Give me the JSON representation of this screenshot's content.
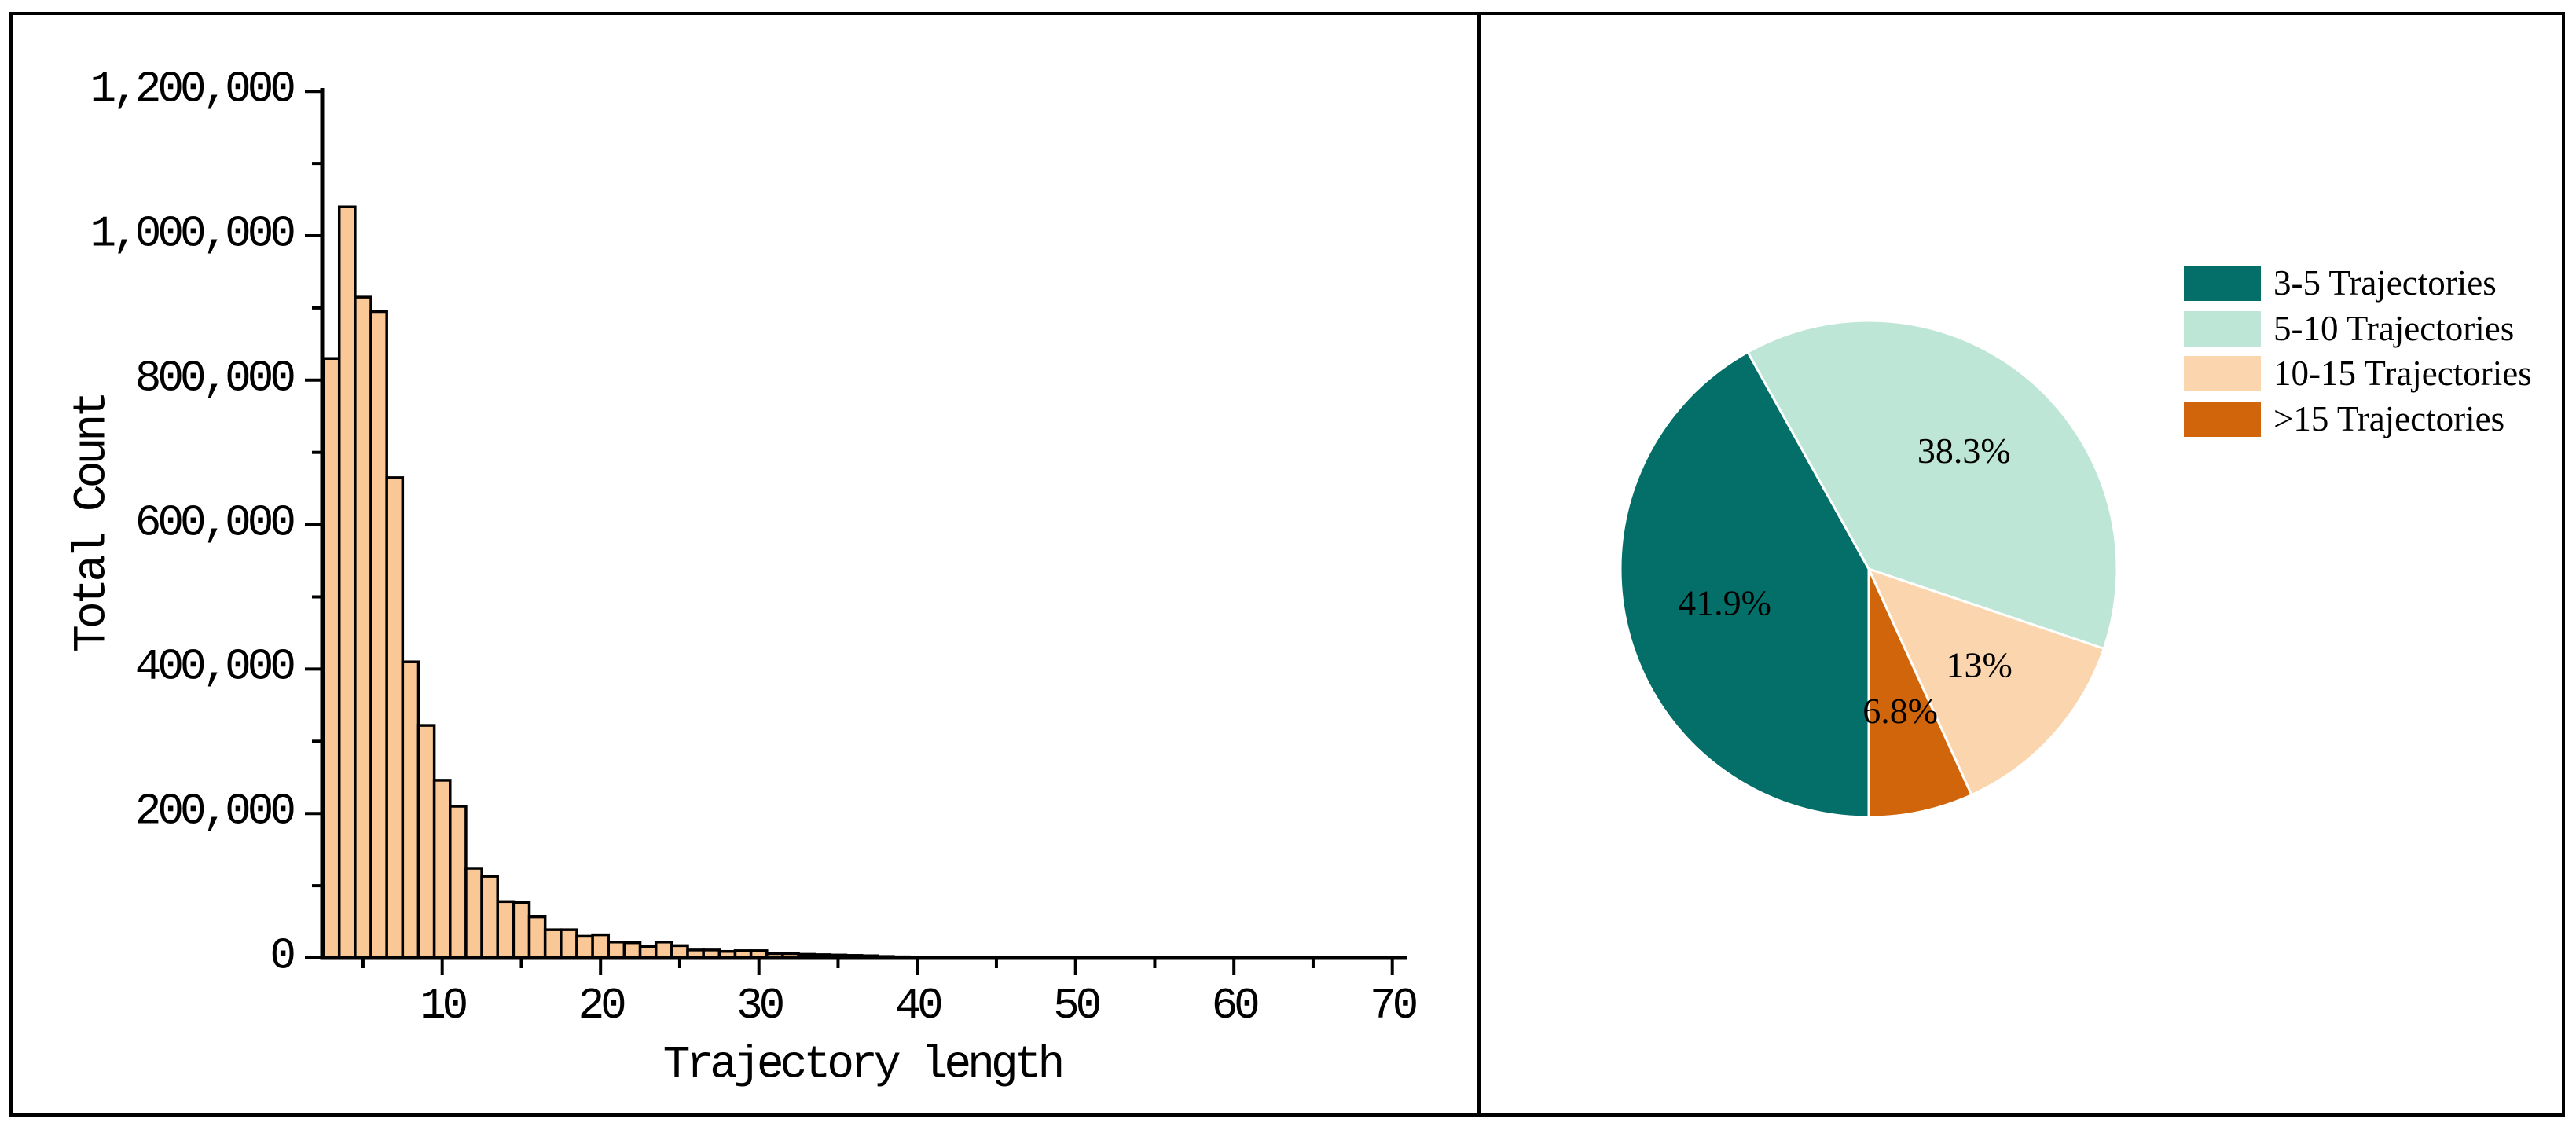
{
  "figure": {
    "background": "#ffffff",
    "border_color": "#000000"
  },
  "chart_data": [
    {
      "type": "bar",
      "title": "",
      "xlabel": "Trajectory length",
      "ylabel": "Total Count",
      "bar_color": "#FAC896",
      "bar_edge_color": "#000000",
      "xlim": [
        2,
        71
      ],
      "ylim": [
        0,
        1200000
      ],
      "grid": false,
      "x": [
        3,
        4,
        5,
        6,
        7,
        8,
        9,
        10,
        11,
        12,
        13,
        14,
        15,
        16,
        17,
        18,
        19,
        20,
        21,
        22,
        23,
        24,
        25,
        26,
        27,
        28,
        29,
        30,
        31,
        32,
        33,
        34,
        35,
        36,
        37,
        38,
        39,
        40
      ],
      "values": [
        830000,
        1040000,
        915000,
        895000,
        665000,
        410000,
        322000,
        246000,
        210000,
        124000,
        113000,
        78000,
        77000,
        57000,
        39000,
        39000,
        30000,
        32000,
        22000,
        21000,
        16000,
        22000,
        17000,
        11000,
        11000,
        9000,
        10000,
        10000,
        6000,
        6000,
        5000,
        4500,
        4000,
        3500,
        3000,
        2000,
        1500,
        1200
      ],
      "x_ticks_major": [
        10,
        20,
        30,
        40,
        50,
        60,
        70
      ],
      "x_tick_labels": [
        "10",
        "20",
        "30",
        "40",
        "50",
        "60",
        "70"
      ],
      "x_ticks_minor": [
        5,
        15,
        25,
        35,
        45,
        55,
        65
      ],
      "y_ticks_major": [
        0,
        200000,
        400000,
        600000,
        800000,
        1000000,
        1200000
      ],
      "y_tick_labels": [
        "0",
        "200,000",
        "400,000",
        "600,000",
        "800,000",
        "1,000,000",
        "1,200,000"
      ],
      "y_ticks_minor": [
        100000,
        300000,
        500000,
        700000,
        900000,
        1100000
      ]
    },
    {
      "type": "pie",
      "title": "",
      "legend_position": "upper right",
      "start_angle_deg_screen": 90,
      "direction": "clockwise",
      "slice_border_color": "#ffffff",
      "slices": [
        {
          "label": "3-5 Trajectories",
          "pct_label": "41.9%",
          "value": 41.9,
          "color": "#036F68"
        },
        {
          "label": "5-10 Trajectories",
          "pct_label": "38.3%",
          "value": 38.3,
          "color": "#BDE6D6"
        },
        {
          "label": "10-15 Trajectories",
          "pct_label": "13%",
          "value": 13.0,
          "color": "#FBD5AD"
        },
        {
          "label": ">15 Trajectories",
          "pct_label": "6.8%",
          "value": 6.8,
          "color": "#D0650B"
        }
      ]
    }
  ],
  "histogram_axis_titles": {
    "x": "Trajectory length",
    "y": "Total Count"
  }
}
